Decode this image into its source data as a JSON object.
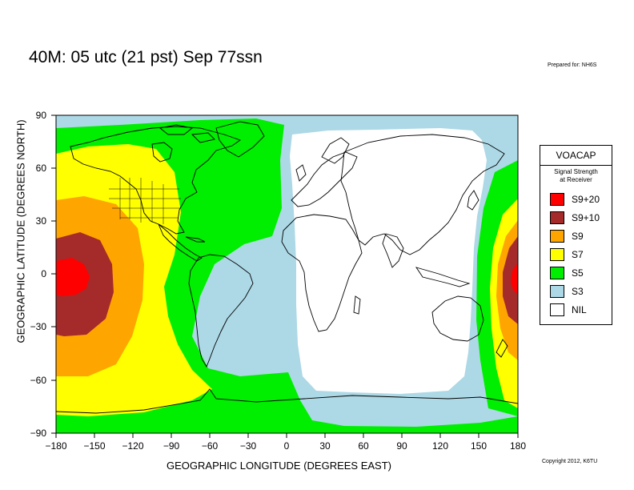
{
  "header": {
    "title": "40M:  05 utc (21 pst) Sep 77ssn",
    "prepared": "Prepared for: NH6S",
    "copyright": "Copyright 2012, K6TU"
  },
  "axes": {
    "xlabel": "GEOGRAPHIC LONGITUDE (DEGREES EAST)",
    "ylabel": "GEOGRAPHIC LATITUDE (DEGREES NORTH)",
    "x_ticks": [
      "−180",
      "−150",
      "−120",
      "−90",
      "−60",
      "−30",
      "0",
      "30",
      "60",
      "90",
      "120",
      "150",
      "180"
    ],
    "y_ticks": [
      "90",
      "60",
      "30",
      "0",
      "−30",
      "−60",
      "−90"
    ]
  },
  "legend": {
    "title": "VOACAP",
    "subtitle_line1": "Signal Strength",
    "subtitle_line2": "at Receiver",
    "items": [
      {
        "label": "S9+20",
        "color": "#ff0000"
      },
      {
        "label": "S9+10",
        "color": "#a52a2a"
      },
      {
        "label": "S9",
        "color": "#ffa500"
      },
      {
        "label": "S7",
        "color": "#ffff00"
      },
      {
        "label": "S5",
        "color": "#00ee00"
      },
      {
        "label": "S3",
        "color": "#add8e6"
      },
      {
        "label": "NIL",
        "color": "#ffffff"
      }
    ]
  },
  "map": {
    "projection": "equirectangular",
    "transmitter": {
      "lon": -170,
      "lat": 0
    },
    "colors": {
      "s920": "#ff0000",
      "s910": "#a52a2a",
      "s9": "#ffa500",
      "s7": "#ffff00",
      "s5": "#00ee00",
      "s3": "#add8e6",
      "nil": "#ffffff",
      "coast": "#000000"
    }
  }
}
